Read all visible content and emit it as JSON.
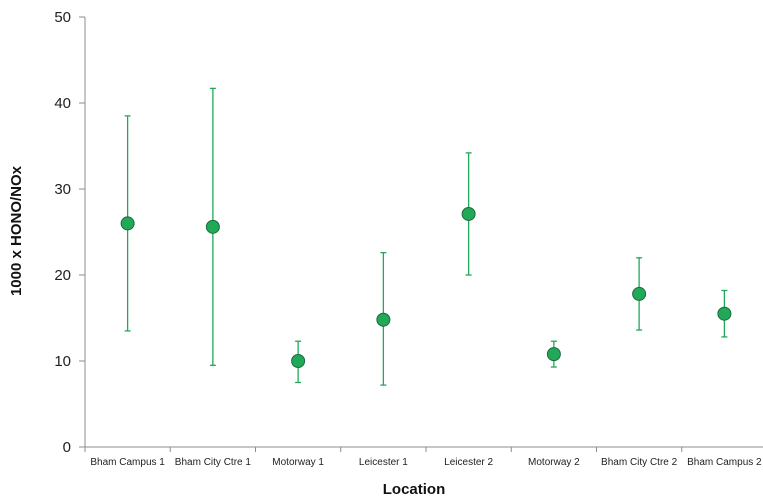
{
  "chart_data": {
    "type": "scatter",
    "xlabel": "Location",
    "ylabel": "1000 x HONO/NOx",
    "ylim": [
      0,
      50
    ],
    "yticks": [
      "0",
      "10",
      "20",
      "30",
      "40",
      "50"
    ],
    "grid": false,
    "categories": [
      "Bham Campus  1",
      "Bham City Ctre 1",
      "Motorway 1",
      "Leicester 1",
      "Leicester 2",
      "Motorway 2",
      "Bham City Ctre 2",
      "Bham Campus  2"
    ],
    "series": [
      {
        "values": [
          26.0,
          25.6,
          10.0,
          14.8,
          27.1,
          10.8,
          17.8,
          15.5
        ],
        "error_low": [
          13.5,
          9.5,
          7.5,
          7.2,
          20.0,
          9.3,
          13.6,
          12.8
        ],
        "error_high": [
          38.5,
          41.7,
          12.3,
          22.6,
          34.2,
          12.3,
          22.0,
          18.2
        ]
      }
    ],
    "marker_color": "#22a859",
    "marker_edge_color": "#1a6b3a",
    "errorbar_color": "#22a859"
  }
}
